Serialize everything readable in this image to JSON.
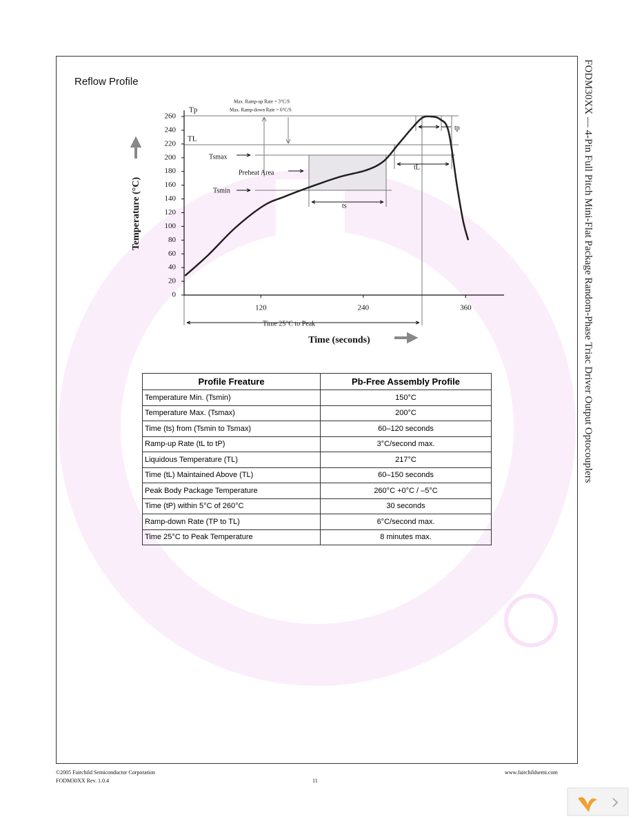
{
  "side_title": "FODM30XX — 4-Pin Full Pitch Mini-Flat Package Random-Phase Triac Driver Output Optocouplers",
  "chart_data": {
    "type": "line",
    "title": "Reflow Profile",
    "x_label": "Time (seconds)",
    "y_label": "Temperature (°C)",
    "x": [
      31,
      58,
      90,
      123,
      147,
      179,
      212,
      244,
      264,
      280,
      297,
      309,
      319,
      330,
      340,
      350,
      357,
      363
    ],
    "values": [
      28,
      58,
      98,
      130,
      143,
      158,
      172,
      182,
      195,
      218,
      243,
      258,
      260,
      256,
      238,
      158,
      108,
      80
    ],
    "color": "#231f20",
    "xlim": [
      30,
      405
    ],
    "ylim": [
      0,
      260
    ],
    "xticks": [
      120,
      240,
      360
    ],
    "yticks": [
      0,
      20,
      40,
      60,
      80,
      100,
      120,
      140,
      160,
      180,
      200,
      220,
      240,
      260
    ],
    "annotations": [
      "Tp",
      "TL",
      "Tsmax",
      "Tsmin",
      "Preheat Area",
      "ts",
      "tL",
      "tp",
      "Max. Ramp-up Rate = 3°C/S",
      "Max. Ramp-down Rate = 6°C/S",
      "Time 25°C to Peak"
    ]
  },
  "table": {
    "header": [
      "Profile Freature",
      "Pb-Free Assembly Profile"
    ],
    "rows": [
      [
        "Temperature Min. (Tsmin)",
        "150°C"
      ],
      [
        "Temperature Max. (Tsmax)",
        "200°C"
      ],
      [
        "Time (ts) from (Tsmin to Tsmax)",
        "60–120 seconds"
      ],
      [
        "Ramp-up Rate (tL to tP)",
        "3°C/second max."
      ],
      [
        "Liquidous Temperature (TL)",
        "217°C"
      ],
      [
        "Time (tL) Maintained Above (TL)",
        "60–150 seconds"
      ],
      [
        "Peak Body Package Temperature",
        "260°C +0°C / –5°C"
      ],
      [
        "Time (tP) within 5°C of 260°C",
        "30 seconds"
      ],
      [
        "Ramp-down Rate (TP to TL)",
        "6°C/second max."
      ],
      [
        "Time 25°C to Peak Temperature",
        "8 minutes max."
      ]
    ]
  },
  "footer": {
    "copyright": "©2005 Fairchild Semiconductor Corporation",
    "revision": "FODM30XX Rev. 1.0.4",
    "page": "11",
    "url": "www.fairchildsemi.com"
  }
}
